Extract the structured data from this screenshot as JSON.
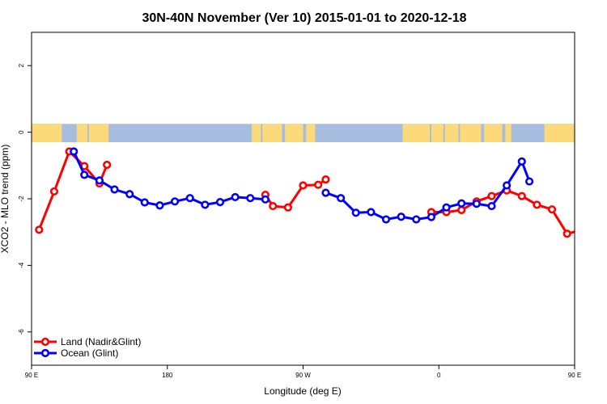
{
  "chart_data": {
    "type": "line",
    "title": "30N-40N November (Ver 10)   2015-01-01 to 2020-12-18",
    "xlabel": "Longitude (deg E)",
    "ylabel": "XCO2 - MLO trend (ppm)",
    "xlim": [
      90,
      450
    ],
    "ylim": [
      -7,
      3
    ],
    "x_ticks": [
      {
        "value": 90,
        "label": "90 E"
      },
      {
        "value": 180,
        "label": "180"
      },
      {
        "value": 270,
        "label": "90 W"
      },
      {
        "value": 360,
        "label": "0"
      },
      {
        "value": 450,
        "label": "90 E"
      },
      {
        "value": 540,
        "label": "180"
      }
    ],
    "y_ticks": [
      {
        "value": 2,
        "label": "2"
      },
      {
        "value": 0,
        "label": "0"
      },
      {
        "value": -2,
        "label": "-2"
      },
      {
        "value": -4,
        "label": "-4"
      },
      {
        "value": -6,
        "label": "-6"
      }
    ],
    "x_repeat_period": 360,
    "legend_position": "bottom-left",
    "map_band": {
      "ymin": -0.3,
      "ymax": 0.25,
      "ocean_color": "#a7bddf",
      "land_color": "#fcd97a"
    },
    "series": [
      {
        "name": "Land (Nadir&Glint)",
        "color": "#ff0000",
        "points": [
          {
            "x": 95,
            "y": -2.93
          },
          {
            "x": 105,
            "y": -1.78
          },
          {
            "x": 115,
            "y": -0.58
          },
          {
            "x": 125,
            "y": -1.02
          },
          {
            "x": 135,
            "y": -1.54
          },
          {
            "x": 140,
            "y": -0.98
          },
          {
            "x": 245,
            "y": -1.88
          },
          {
            "x": 250,
            "y": -2.22
          },
          {
            "x": 260,
            "y": -2.26
          },
          {
            "x": 270,
            "y": -1.6
          },
          {
            "x": 280,
            "y": -1.58
          },
          {
            "x": 285,
            "y": -1.42
          },
          {
            "x": 355,
            "y": -2.4
          },
          {
            "x": 365,
            "y": -2.4
          },
          {
            "x": 375,
            "y": -2.34
          },
          {
            "x": 385,
            "y": -2.08
          },
          {
            "x": 395,
            "y": -1.92
          },
          {
            "x": 405,
            "y": -1.75
          },
          {
            "x": 415,
            "y": -1.92
          },
          {
            "x": 425,
            "y": -2.18
          },
          {
            "x": 435,
            "y": -2.32
          },
          {
            "x": 445,
            "y": -3.05
          },
          {
            "x": 455,
            "y": -2.93
          }
        ]
      },
      {
        "name": "Ocean (Glint)",
        "color": "#0000ff",
        "points": [
          {
            "x": 118,
            "y": -0.58
          },
          {
            "x": 125,
            "y": -1.28
          },
          {
            "x": 135,
            "y": -1.45
          },
          {
            "x": 145,
            "y": -1.72
          },
          {
            "x": 155,
            "y": -1.86
          },
          {
            "x": 165,
            "y": -2.11
          },
          {
            "x": 175,
            "y": -2.2
          },
          {
            "x": 185,
            "y": -2.08
          },
          {
            "x": 195,
            "y": -1.98
          },
          {
            "x": 205,
            "y": -2.18
          },
          {
            "x": 215,
            "y": -2.1
          },
          {
            "x": 225,
            "y": -1.95
          },
          {
            "x": 235,
            "y": -1.98
          },
          {
            "x": 245,
            "y": -2.02
          },
          {
            "x": 285,
            "y": -1.82
          },
          {
            "x": 295,
            "y": -1.98
          },
          {
            "x": 305,
            "y": -2.42
          },
          {
            "x": 315,
            "y": -2.4
          },
          {
            "x": 325,
            "y": -2.62
          },
          {
            "x": 335,
            "y": -2.54
          },
          {
            "x": 345,
            "y": -2.62
          },
          {
            "x": 355,
            "y": -2.55
          },
          {
            "x": 365,
            "y": -2.26
          },
          {
            "x": 375,
            "y": -2.14
          },
          {
            "x": 385,
            "y": -2.15
          },
          {
            "x": 395,
            "y": -2.22
          },
          {
            "x": 405,
            "y": -1.6
          },
          {
            "x": 415,
            "y": -0.88
          },
          {
            "x": 420,
            "y": -1.48
          }
        ]
      }
    ]
  }
}
